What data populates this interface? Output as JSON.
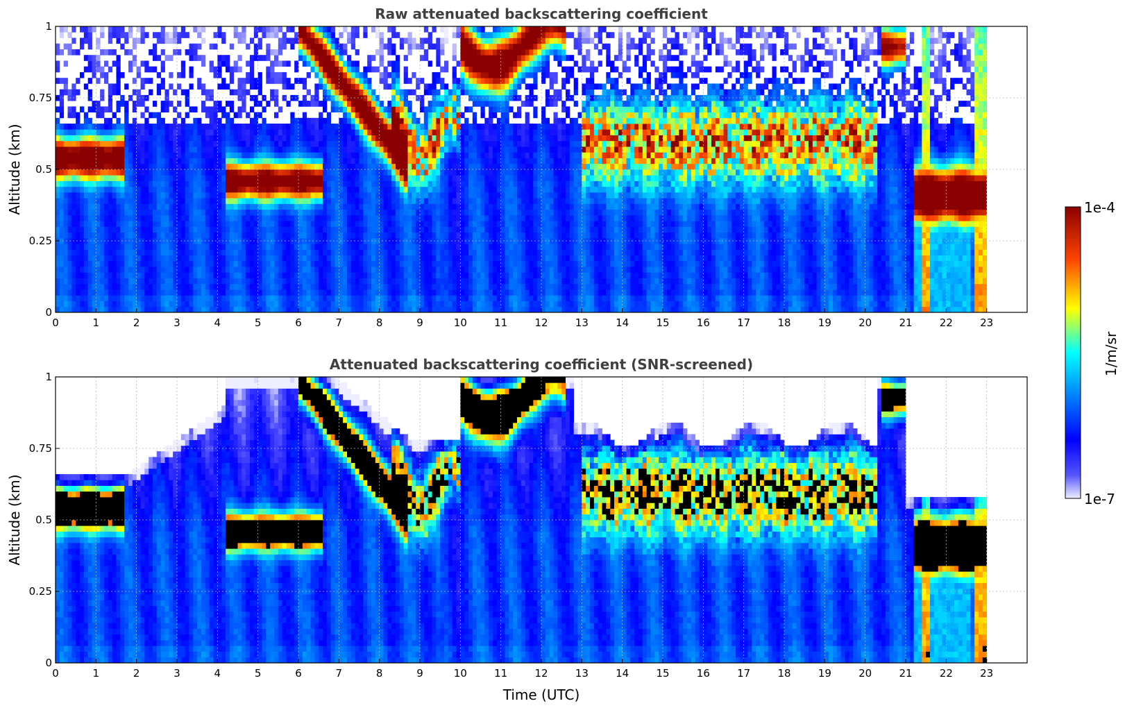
{
  "chart_data": [
    {
      "type": "heatmap",
      "title": "Raw attenuated backscattering coefficient",
      "xlabel": "",
      "ylabel": "Altitude (km)",
      "xlim": [
        0,
        24
      ],
      "ylim": [
        0,
        1
      ],
      "xticks": [
        "0",
        "1",
        "2",
        "3",
        "4",
        "5",
        "6",
        "7",
        "8",
        "9",
        "10",
        "11",
        "12",
        "13",
        "14",
        "15",
        "16",
        "17",
        "18",
        "19",
        "20",
        "21",
        "22",
        "23"
      ],
      "yticks": [
        "0",
        "0.25",
        "0.5",
        "0.75",
        "1"
      ],
      "grid": true,
      "data_end_hour": 23,
      "cloud_layers": [
        {
          "t": [
            0,
            1.7
          ],
          "base": 0.45,
          "top": 0.63
        },
        {
          "t": [
            4.2,
            6.6
          ],
          "base": 0.4,
          "top": 0.52
        },
        {
          "t": [
            6,
            8.7
          ],
          "base_start": 0.99,
          "base_end": 0.5,
          "note": "descending layer"
        },
        {
          "t": [
            10,
            12.5
          ],
          "base": 0.8,
          "top": 1.0
        },
        {
          "t": [
            13,
            20.3
          ],
          "base": 0.45,
          "top": 0.8
        },
        {
          "t": [
            20.4,
            21
          ],
          "base": 0.85,
          "top": 1.0
        },
        {
          "t": [
            21.2,
            23
          ],
          "base": 0.3,
          "top": 0.5
        }
      ],
      "precipitation_hours": [
        21.4,
        22.9
      ]
    },
    {
      "type": "heatmap",
      "title": "Attenuated backscattering coefficient (SNR-screened)",
      "xlabel": "Time (UTC)",
      "ylabel": "Altitude (km)",
      "xlim": [
        0,
        24
      ],
      "ylim": [
        0,
        1
      ],
      "xticks": [
        "0",
        "1",
        "2",
        "3",
        "4",
        "5",
        "6",
        "7",
        "8",
        "9",
        "10",
        "11",
        "12",
        "13",
        "14",
        "15",
        "16",
        "17",
        "18",
        "19",
        "20",
        "21",
        "22",
        "23"
      ],
      "yticks": [
        "0",
        "0.25",
        "0.5",
        "0.75",
        "1"
      ],
      "grid": true,
      "data_end_hour": 23,
      "screened": true
    }
  ],
  "colorbar": {
    "label": "1/m/sr",
    "max_label": "1e-4",
    "min_label": "1e-7",
    "colormap": "jet",
    "colors": [
      "#eeeeff",
      "#0000ff",
      "#00aaff",
      "#00ffff",
      "#ffff00",
      "#ff6600",
      "#aa0000"
    ]
  }
}
